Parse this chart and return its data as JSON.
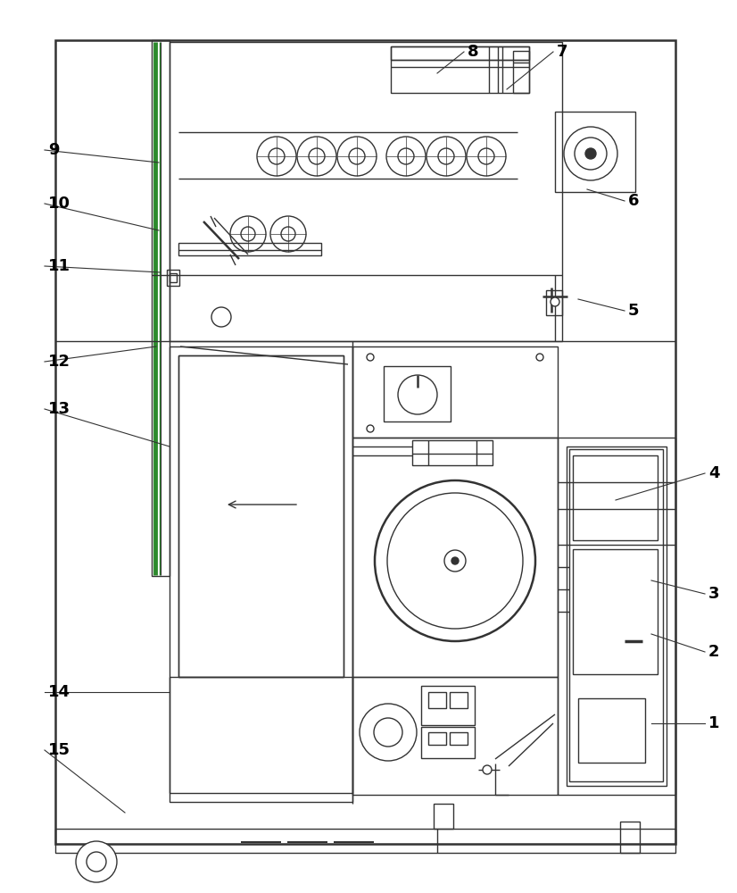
{
  "background": "#ffffff",
  "line_color": "#333333",
  "green_color": "#2d8a2d",
  "line_width": 1.0,
  "thick_line": 1.8,
  "label_color": "#000000",
  "figure_width": 8.26,
  "figure_height": 10.0,
  "label_data": [
    [
      "1",
      790,
      810,
      730,
      810
    ],
    [
      "2",
      790,
      730,
      730,
      710
    ],
    [
      "3",
      790,
      665,
      730,
      650
    ],
    [
      "4",
      790,
      530,
      690,
      560
    ],
    [
      "5",
      700,
      348,
      648,
      335
    ],
    [
      "6",
      700,
      225,
      658,
      212
    ],
    [
      "7",
      620,
      58,
      568,
      100
    ],
    [
      "8",
      520,
      58,
      490,
      82
    ],
    [
      "9",
      50,
      168,
      178,
      182
    ],
    [
      "10",
      50,
      228,
      178,
      258
    ],
    [
      "11",
      50,
      298,
      180,
      305
    ],
    [
      "12",
      50,
      405,
      175,
      388
    ],
    [
      "13",
      50,
      458,
      190,
      500
    ],
    [
      "14",
      50,
      775,
      190,
      775
    ],
    [
      "15",
      50,
      840,
      140,
      910
    ]
  ]
}
